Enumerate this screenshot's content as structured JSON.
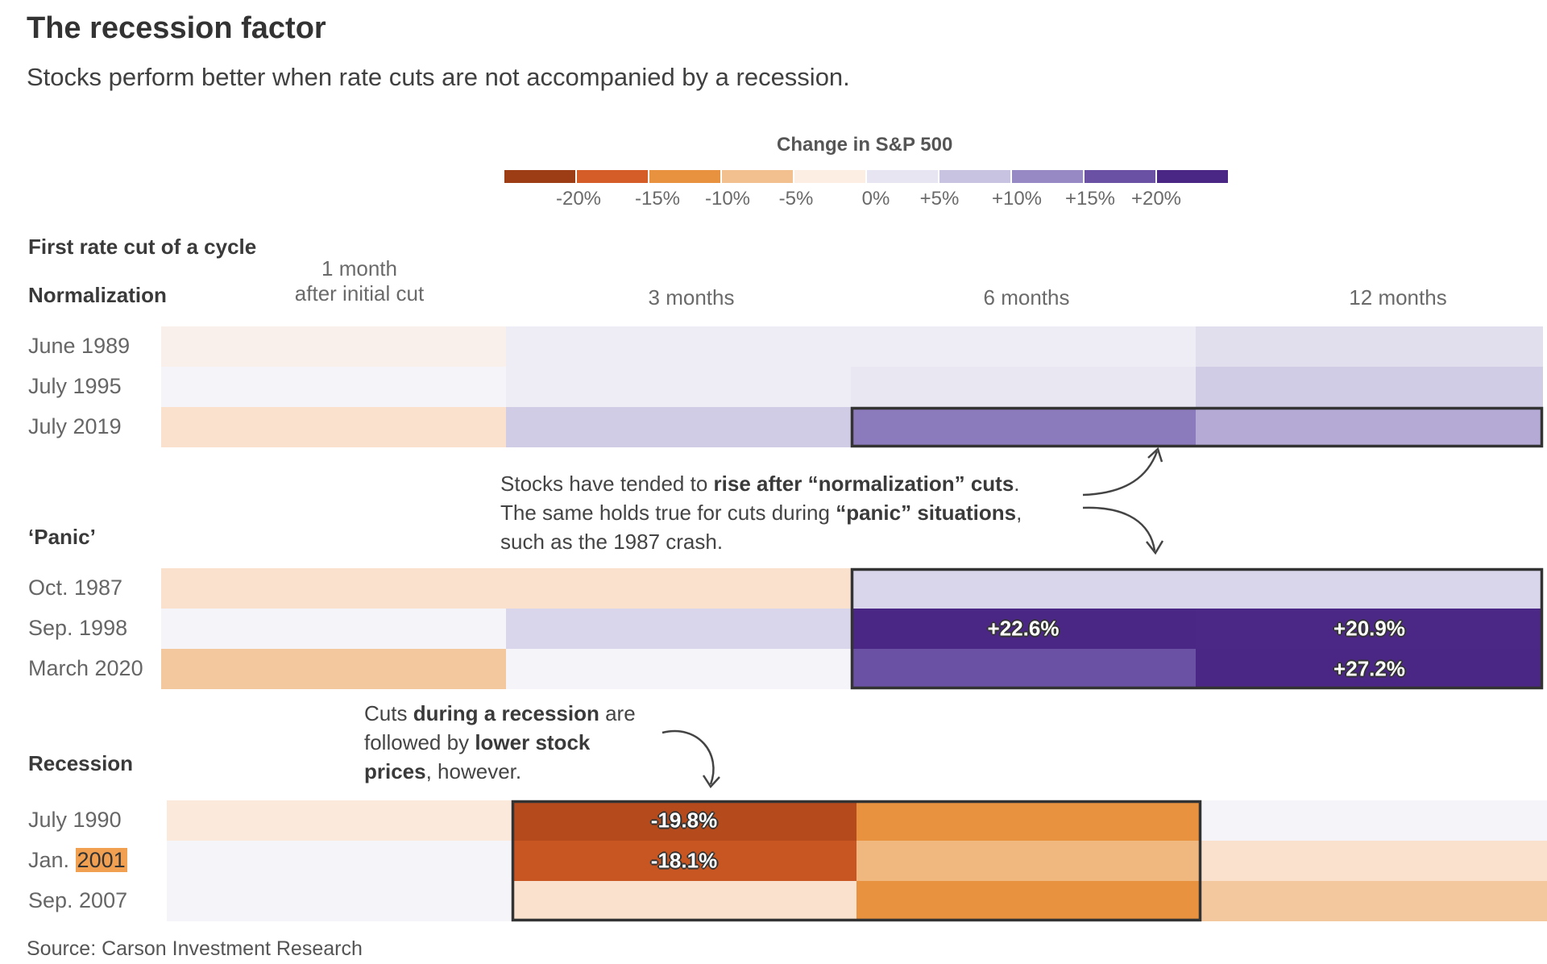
{
  "title": "The recession factor",
  "subtitle": "Stocks perform better when rate cuts are not accompanied by a recession.",
  "source": "Source: Carson Investment Research",
  "legend": {
    "title": "Change in S&P 500",
    "ticks": [
      "-20%",
      "-15%",
      "-10%",
      "-5%",
      "0%",
      "+5%",
      "+10%",
      "+15%",
      "+20%"
    ],
    "colors": [
      "#9c3d16",
      "#d55d27",
      "#e8913f",
      "#f2c08f",
      "#fdeee3",
      "#e7e5f1",
      "#c7c3e0",
      "#9789c3",
      "#6a51a3",
      "#4a2785"
    ]
  },
  "first_cut_label": "First rate cut of a cycle",
  "columns": [
    {
      "line1": "1 month",
      "line2": "after initial cut"
    },
    {
      "line1": "",
      "line2": "3 months"
    },
    {
      "line1": "",
      "line2": "6 months"
    },
    {
      "line1": "",
      "line2": "12 months"
    }
  ],
  "annotations": {
    "normalization": {
      "line1_pre": "Stocks have tended to ",
      "line1_bold": "rise after “normalization” cuts",
      "line1_post": ".",
      "line2_pre": "The same holds true for cuts during ",
      "line2_bold": "“panic” situations",
      "line2_post": ",",
      "line3": "such as the 1987 crash."
    },
    "recession": {
      "line1_pre": "Cuts ",
      "line1_bold": "during a recession",
      "line1_post": " are",
      "line2_pre": "followed by ",
      "line2_bold": "lower stock",
      "line3_bold": "prices",
      "line3_post": ", however."
    }
  },
  "chart_data": {
    "type": "heatmap",
    "title": "The recession factor",
    "subtitle": "Stocks perform better when rate cuts are not accompanied by a recession.",
    "columns": [
      "1 month after initial cut",
      "3 months",
      "6 months",
      "12 months"
    ],
    "groups": [
      {
        "name": "Normalization",
        "rows": [
          {
            "label": "June 1989",
            "values": [
              -1,
              2,
              2,
              4
            ]
          },
          {
            "label": "July 1995",
            "values": [
              0.5,
              2,
              3,
              6
            ]
          },
          {
            "label": "July 2019",
            "values": [
              -3,
              6,
              13,
              9
            ]
          }
        ],
        "highlight": {
          "row_start": 2,
          "row_end": 2,
          "col_start": 2,
          "col_end": 3
        }
      },
      {
        "name": "‘Panic’",
        "rows": [
          {
            "label": "Oct. 1987",
            "values": [
              -3,
              -3,
              5,
              5
            ]
          },
          {
            "label": "Sep. 1998",
            "values": [
              0.5,
              5,
              22.6,
              20.9
            ]
          },
          {
            "label": "March 2020",
            "values": [
              -6,
              0.5,
              17,
              27.2
            ]
          }
        ],
        "highlight": {
          "row_start": 0,
          "row_end": 2,
          "col_start": 2,
          "col_end": 3
        }
      },
      {
        "name": "Recession",
        "rows": [
          {
            "label": "July 1990",
            "values": [
              -2,
              -19.8,
              -12,
              0.5
            ]
          },
          {
            "label": "Jan. 2001",
            "values": [
              0.5,
              -18.1,
              -8,
              -3
            ]
          },
          {
            "label": "Sep. 2007",
            "values": [
              0.5,
              -3,
              -12,
              -6
            ]
          }
        ],
        "highlight": {
          "row_start": 0,
          "row_end": 2,
          "col_start": 1,
          "col_end": 2
        },
        "highlighted_text": "2001"
      }
    ],
    "data_labels": [
      "+22.6%",
      "+20.9%",
      "+27.2%",
      "-19.8%",
      "-18.1%"
    ]
  }
}
